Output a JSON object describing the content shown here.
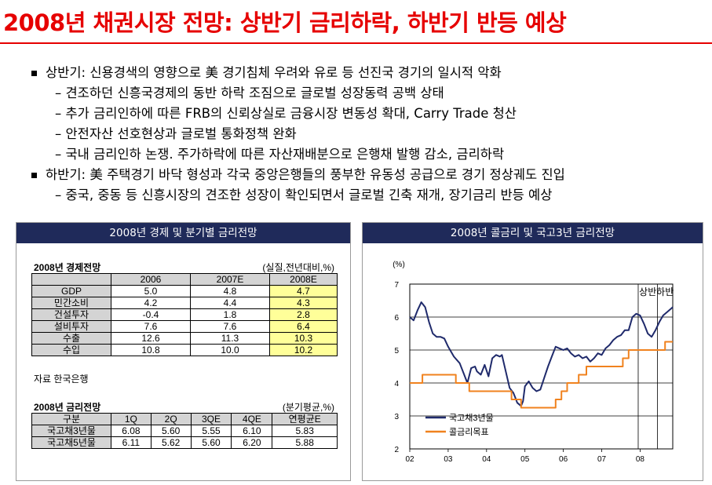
{
  "title": "2008년 채권시장 전망: 상반기 금리하락, 하반기 반등 예상",
  "bullets": [
    {
      "text": "상반기: 신용경색의 영향으로 美 경기침체 우려와 유로 등 선진국 경기의 일시적 악화",
      "subs": [
        "– 견조하던 신흥국경제의 동반 하락 조짐으로 글로벌 성장동력 공백 상태",
        "– 추가 금리인하에 따른 FRB의 신뢰상실로 금융시장 변동성 확대, Carry Trade 청산",
        "– 안전자산 선호현상과 글로벌 통화정책 완화",
        "– 국내 금리인하 논쟁. 주가하락에 따른 자산재배분으로 은행채 발행 감소, 금리하락"
      ]
    },
    {
      "text": "하반기: 美 주택경기 바닥 형성과 각국 중앙은행들의 풍부한 유동성 공급으로 경기 정상궤도 진입",
      "subs": [
        "– 중국, 중동 등 신흥시장의 견조한 성장이 확인되면서 글로벌 긴축 재개, 장기금리 반등 예상"
      ]
    }
  ],
  "left_panel": {
    "header": "2008년 경제 및 분기별 금리전망",
    "econ": {
      "title": "2008년 경제전망",
      "unit": "(실질,전년대비,%)",
      "columns": [
        "",
        "2006",
        "2007E",
        "2008E"
      ],
      "rows": [
        [
          "GDP",
          "5.0",
          "4.8",
          "4.7"
        ],
        [
          "민간소비",
          "4.2",
          "4.4",
          "4.3"
        ],
        [
          "건설투자",
          "-0.4",
          "1.8",
          "2.8"
        ],
        [
          "설비투자",
          "7.6",
          "7.6",
          "6.4"
        ],
        [
          "수출",
          "12.6",
          "11.3",
          "10.3"
        ],
        [
          "수입",
          "10.8",
          "10.0",
          "10.2"
        ]
      ],
      "source": "자료 한국은행"
    },
    "rate": {
      "title": "2008년 금리전망",
      "unit": "(분기평균,%)",
      "columns": [
        "구분",
        "1Q",
        "2Q",
        "3QE",
        "4QE",
        "연평균E"
      ],
      "rows": [
        [
          "국고채3년물",
          "6.08",
          "5.60",
          "5.55",
          "6.10",
          "5.83"
        ],
        [
          "국고채5년물",
          "6.11",
          "5.62",
          "5.60",
          "6.20",
          "5.88"
        ]
      ]
    }
  },
  "right_panel": {
    "header": "2008년 콜금리 및 국고3년 금리전망"
  },
  "chart_data": {
    "type": "line",
    "ylabel": "(%)",
    "ylim": [
      2,
      7
    ],
    "xlim": [
      2002.0,
      2008.85
    ],
    "xticks": [
      "02",
      "03",
      "04",
      "05",
      "06",
      "07",
      "08"
    ],
    "yticks": [
      "2",
      "3",
      "4",
      "5",
      "6",
      "7"
    ],
    "annotations": [
      "상반",
      "하반"
    ],
    "annotation_boundaries": [
      2007.95,
      2008.45
    ],
    "grid": true,
    "legend": "bottom-left",
    "series": [
      {
        "name": "국고채3년물",
        "color": "#1f2a6b",
        "x": [
          2002.0,
          2002.1,
          2002.2,
          2002.3,
          2002.4,
          2002.5,
          2002.6,
          2002.7,
          2002.8,
          2002.9,
          2003.0,
          2003.15,
          2003.3,
          2003.4,
          2003.5,
          2003.6,
          2003.7,
          2003.75,
          2003.85,
          2003.95,
          2004.05,
          2004.15,
          2004.25,
          2004.35,
          2004.4,
          2004.5,
          2004.6,
          2004.7,
          2004.75,
          2004.8,
          2004.85,
          2004.9,
          2004.95,
          2005.0,
          2005.1,
          2005.2,
          2005.3,
          2005.4,
          2005.5,
          2005.6,
          2005.7,
          2005.8,
          2005.9,
          2006.0,
          2006.1,
          2006.2,
          2006.3,
          2006.4,
          2006.5,
          2006.6,
          2006.7,
          2006.8,
          2006.9,
          2007.0,
          2007.1,
          2007.2,
          2007.3,
          2007.4,
          2007.5,
          2007.6,
          2007.7,
          2007.8,
          2007.9,
          2008.0,
          2008.1,
          2008.2,
          2008.3,
          2008.4,
          2008.5,
          2008.6,
          2008.7,
          2008.8,
          2008.85
        ],
        "y": [
          6.0,
          5.9,
          6.2,
          6.45,
          6.3,
          5.85,
          5.5,
          5.4,
          5.4,
          5.35,
          5.1,
          4.8,
          4.6,
          4.3,
          4.0,
          4.45,
          4.5,
          4.35,
          4.25,
          4.55,
          4.2,
          4.75,
          4.85,
          4.8,
          4.85,
          4.35,
          3.85,
          3.7,
          3.55,
          3.4,
          3.35,
          3.3,
          3.45,
          3.9,
          4.05,
          3.85,
          3.75,
          3.8,
          4.15,
          4.5,
          4.8,
          5.1,
          5.05,
          5.0,
          5.05,
          4.9,
          4.8,
          4.85,
          4.75,
          4.8,
          4.65,
          4.75,
          4.9,
          4.85,
          5.05,
          5.15,
          5.3,
          5.4,
          5.45,
          5.6,
          5.6,
          6.0,
          6.1,
          6.05,
          5.8,
          5.5,
          5.4,
          5.6,
          5.85,
          6.05,
          6.15,
          6.25,
          6.3
        ]
      },
      {
        "name": "콜금리목표",
        "color": "#f0821e",
        "x": [
          2002.0,
          2002.33,
          2002.33,
          2003.2,
          2003.2,
          2003.55,
          2003.55,
          2004.65,
          2004.65,
          2004.9,
          2004.9,
          2005.8,
          2005.8,
          2005.95,
          2005.95,
          2006.1,
          2006.1,
          2006.4,
          2006.4,
          2006.6,
          2006.6,
          2007.55,
          2007.55,
          2007.7,
          2007.7,
          2008.65,
          2008.65,
          2008.85
        ],
        "y": [
          4.0,
          4.0,
          4.25,
          4.25,
          4.0,
          4.0,
          3.75,
          3.75,
          3.5,
          3.5,
          3.25,
          3.25,
          3.5,
          3.5,
          3.75,
          3.75,
          4.0,
          4.0,
          4.25,
          4.25,
          4.5,
          4.5,
          4.75,
          4.75,
          5.0,
          5.0,
          5.25,
          5.25
        ]
      }
    ]
  }
}
